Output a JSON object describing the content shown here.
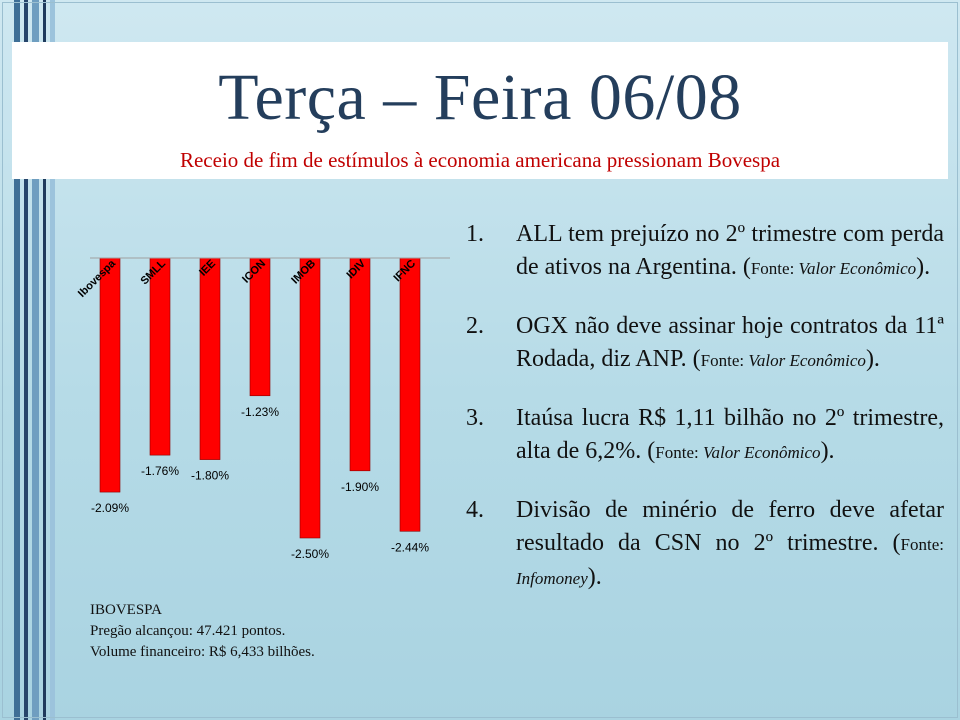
{
  "header": {
    "title": "Terça – Feira 06/08",
    "subtitle": "Receio de fim de estímulos à economia americana pressionam Bovespa"
  },
  "colors": {
    "bar": "#ff0000",
    "title": "#243e5c",
    "subtitle": "#c00000"
  },
  "chart_data": {
    "type": "bar",
    "categories": [
      "Ibovespa",
      "SMLL",
      "IEE",
      "ICON",
      "IMOB",
      "IDIV",
      "IFNC"
    ],
    "values": [
      -2.09,
      -1.76,
      -1.8,
      -1.23,
      -2.5,
      -1.9,
      -2.44
    ],
    "value_labels": [
      "-2.09%",
      "-1.76%",
      "-1.80%",
      "-1.23%",
      "-2.50%",
      "-1.90%",
      "-2.44%"
    ],
    "ylim": [
      -2.5,
      0
    ],
    "grid": false
  },
  "ibovespa_note": {
    "line1": "IBOVESPA",
    "line2": "Pregão alcançou: 47.421 pontos.",
    "line3": "Volume financeiro:  R$ 6,433 bilhões."
  },
  "news": [
    {
      "num": "1.",
      "text": "ALL tem prejuízo no 2º trimestre com perda de ativos na Argentina.  (",
      "src_label": "Fonte: ",
      "src_italic": "Valor Econômico",
      "close": ")."
    },
    {
      "num": "2.",
      "text": "OGX não deve assinar hoje contratos da 11ª Rodada, diz ANP.  (",
      "src_label": "Fonte: ",
      "src_italic": "Valor Econômico",
      "close": ")."
    },
    {
      "num": "3.",
      "text": "Itaúsa lucra R$ 1,11 bilhão no 2º trimestre, alta de 6,2%. (",
      "src_label": "Fonte: ",
      "src_italic": "Valor Econômico",
      "close": ")."
    },
    {
      "num": "4.",
      "text": "Divisão de minério de ferro deve afetar resultado da CSN no 2º trimestre. (",
      "src_label": "Fonte: ",
      "src_italic": "Infomoney",
      "close": ")."
    }
  ]
}
